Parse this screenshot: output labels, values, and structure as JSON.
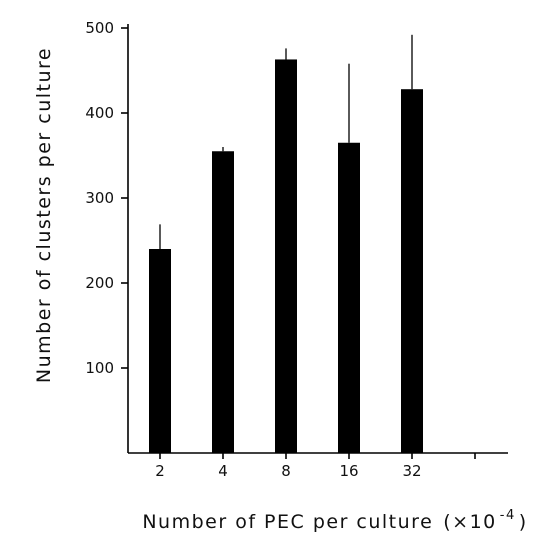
{
  "chart_data": {
    "type": "bar",
    "categories": [
      "2",
      "4",
      "8",
      "16",
      "32"
    ],
    "values": [
      240,
      355,
      463,
      365,
      428
    ],
    "error_upper": [
      269,
      360,
      476,
      458,
      492
    ],
    "xlabel": "Number of PEC per culture",
    "xlabel_unit": "(×10",
    "xlabel_exp": "-4",
    "xlabel_close": ")",
    "ylabel": "Number of clusters per culture",
    "ylim": [
      0,
      500
    ],
    "yticks": [
      100,
      200,
      300,
      400,
      500
    ],
    "grid": false,
    "bar_color": "#000000"
  }
}
